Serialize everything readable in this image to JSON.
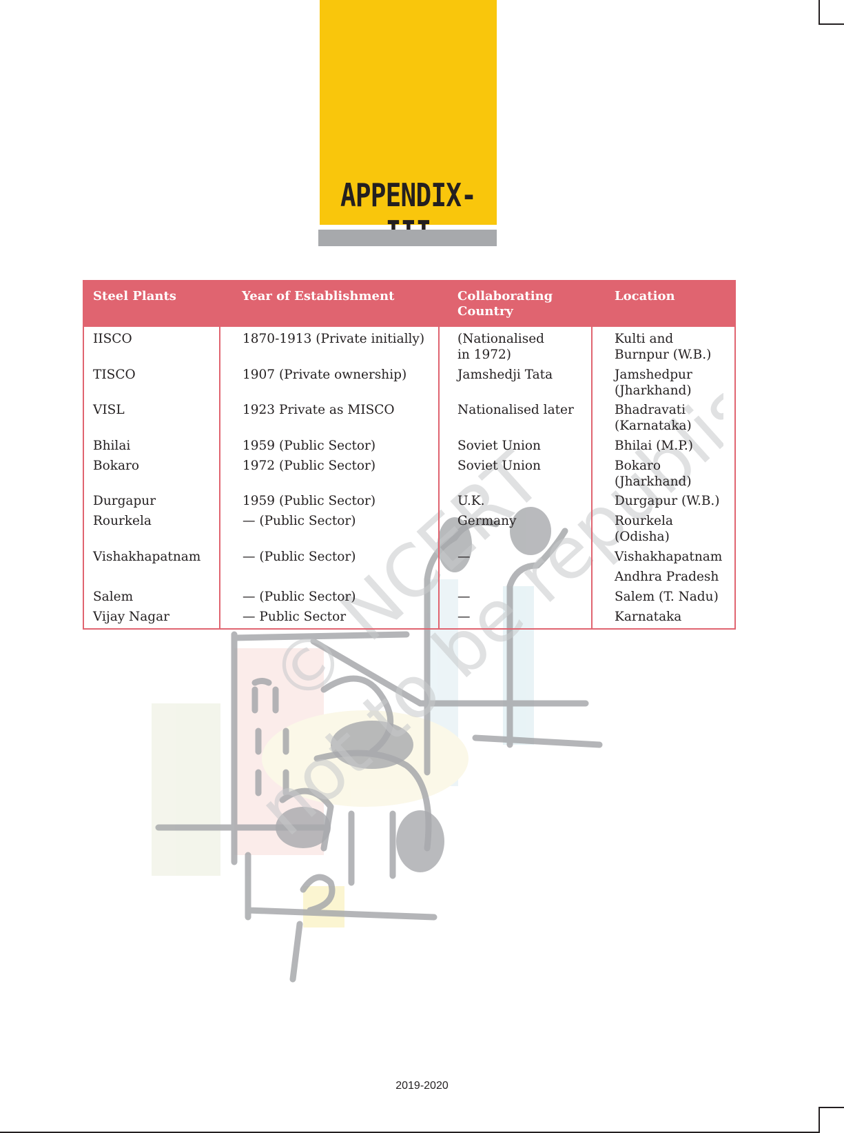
{
  "page": {
    "title": "APPENDIX-III",
    "footer": "2019-2020"
  },
  "table": {
    "headers": [
      "Steel Plants",
      "Year of Establishment",
      "Collaborating Country",
      "Location"
    ],
    "rows": [
      {
        "plant": "IISCO",
        "year": "1870-1913 (Private initially)",
        "country_1": "(Nationalised",
        "country_2": "in 1972)",
        "location_1": "Kulti and",
        "location_2": "Burnpur (W.B.)"
      },
      {
        "plant": "TISCO",
        "year": "1907 (Private ownership)",
        "country_1": "Jamshedji Tata",
        "country_2": "",
        "location_1": "Jamshedpur",
        "location_2": "(Jharkhand)"
      },
      {
        "plant": "VISL",
        "year": "1923 Private as MISCO",
        "country_1": "Nationalised later",
        "country_2": "",
        "location_1": "Bhadravati",
        "location_2": "(Karnataka)"
      },
      {
        "plant": "Bhilai",
        "year": "1959 (Public Sector)",
        "country_1": "Soviet Union",
        "country_2": "",
        "location_1": "Bhilai (M.P.)",
        "location_2": ""
      },
      {
        "plant": "Bokaro",
        "year": "1972 (Public Sector)",
        "country_1": "Soviet Union",
        "country_2": "",
        "location_1": "Bokaro",
        "location_2": "(Jharkhand)"
      },
      {
        "plant": "Durgapur",
        "year": "1959 (Public Sector)",
        "country_1": "U.K.",
        "country_2": "",
        "location_1": "Durgapur (W.B.)",
        "location_2": ""
      },
      {
        "plant": "Rourkela",
        "year": "—  (Public Sector)",
        "country_1": "Germany",
        "country_2": "",
        "location_1": "Rourkela",
        "location_2": "(Odisha)"
      },
      {
        "plant": "Vishakhapatnam",
        "year": "—  (Public Sector)",
        "country_1": "—",
        "country_2": "",
        "location_1": "Vishakhapatnam",
        "location_2": "Andhra Pradesh"
      },
      {
        "plant": "Salem",
        "year": "—  (Public Sector)",
        "country_1": "—",
        "country_2": "",
        "location_1": "Salem (T. Nadu)",
        "location_2": ""
      },
      {
        "plant": "Vijay Nagar",
        "year": "—  Public Sector",
        "country_1": "—",
        "country_2": "",
        "location_1": "Karnataka",
        "location_2": ""
      }
    ]
  },
  "watermark": {
    "line1": "© NCERT",
    "line2": "not to be republished"
  },
  "colors": {
    "accent_yellow": "#f9c60c",
    "table_red": "#e06470",
    "bar_grey": "#a7a9ac"
  }
}
